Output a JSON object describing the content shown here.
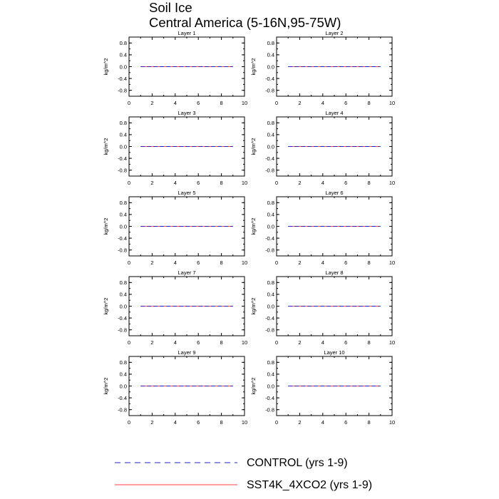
{
  "title": {
    "line1": "Soil Ice",
    "line2": "Central America (5-16N,95-75W)"
  },
  "legend": {
    "items": [
      {
        "label": "CONTROL (yrs 1-9)",
        "color": "#2020c0",
        "style": "dashed"
      },
      {
        "label": "SST4K_4XCO2 (yrs 1-9)",
        "color": "#ff4040",
        "style": "solid"
      }
    ]
  },
  "chart_data": [
    {
      "type": "line",
      "title": "Layer 1",
      "ylabel": "kg/m^2",
      "xlim": [
        0,
        10
      ],
      "ylim": [
        -1,
        1
      ],
      "xticks": [
        "0",
        "2",
        "4",
        "6",
        "8",
        "10"
      ],
      "yticks": [
        "0.8",
        "0.4",
        "0.0",
        "-0.4",
        "-0.8"
      ],
      "series": [
        {
          "name": "CONTROL (yrs 1-9)",
          "x": [
            1,
            2,
            3,
            4,
            5,
            6,
            7,
            8,
            9
          ],
          "y": [
            0,
            0,
            0,
            0,
            0,
            0,
            0,
            0,
            0
          ]
        },
        {
          "name": "SST4K_4XCO2 (yrs 1-9)",
          "x": [
            1,
            2,
            3,
            4,
            5,
            6,
            7,
            8,
            9
          ],
          "y": [
            0,
            0,
            0,
            0,
            0,
            0,
            0,
            0,
            0
          ]
        }
      ]
    },
    {
      "type": "line",
      "title": "Layer 2",
      "ylabel": "kg/m^2",
      "xlim": [
        0,
        10
      ],
      "ylim": [
        -1,
        1
      ],
      "xticks": [
        "0",
        "2",
        "4",
        "6",
        "8",
        "10"
      ],
      "yticks": [
        "0.8",
        "0.4",
        "0.0",
        "-0.4",
        "-0.8"
      ],
      "series": [
        {
          "name": "CONTROL (yrs 1-9)",
          "x": [
            1,
            2,
            3,
            4,
            5,
            6,
            7,
            8,
            9
          ],
          "y": [
            0,
            0,
            0,
            0,
            0,
            0,
            0,
            0,
            0
          ]
        },
        {
          "name": "SST4K_4XCO2 (yrs 1-9)",
          "x": [
            1,
            2,
            3,
            4,
            5,
            6,
            7,
            8,
            9
          ],
          "y": [
            0,
            0,
            0,
            0,
            0,
            0,
            0,
            0,
            0
          ]
        }
      ]
    },
    {
      "type": "line",
      "title": "Layer 3",
      "ylabel": "kg/m^2",
      "xlim": [
        0,
        10
      ],
      "ylim": [
        -1,
        1
      ],
      "xticks": [
        "0",
        "2",
        "4",
        "6",
        "8",
        "10"
      ],
      "yticks": [
        "0.8",
        "0.4",
        "0.0",
        "-0.4",
        "-0.8"
      ],
      "series": [
        {
          "name": "CONTROL (yrs 1-9)",
          "x": [
            1,
            2,
            3,
            4,
            5,
            6,
            7,
            8,
            9
          ],
          "y": [
            0,
            0,
            0,
            0,
            0,
            0,
            0,
            0,
            0
          ]
        },
        {
          "name": "SST4K_4XCO2 (yrs 1-9)",
          "x": [
            1,
            2,
            3,
            4,
            5,
            6,
            7,
            8,
            9
          ],
          "y": [
            0,
            0,
            0,
            0,
            0,
            0,
            0,
            0,
            0
          ]
        }
      ]
    },
    {
      "type": "line",
      "title": "Layer 4",
      "ylabel": "kg/m^2",
      "xlim": [
        0,
        10
      ],
      "ylim": [
        -1,
        1
      ],
      "xticks": [
        "0",
        "2",
        "4",
        "6",
        "8",
        "10"
      ],
      "yticks": [
        "0.8",
        "0.4",
        "0.0",
        "-0.4",
        "-0.8"
      ],
      "series": [
        {
          "name": "CONTROL (yrs 1-9)",
          "x": [
            1,
            2,
            3,
            4,
            5,
            6,
            7,
            8,
            9
          ],
          "y": [
            0,
            0,
            0,
            0,
            0,
            0,
            0,
            0,
            0
          ]
        },
        {
          "name": "SST4K_4XCO2 (yrs 1-9)",
          "x": [
            1,
            2,
            3,
            4,
            5,
            6,
            7,
            8,
            9
          ],
          "y": [
            0,
            0,
            0,
            0,
            0,
            0,
            0,
            0,
            0
          ]
        }
      ]
    },
    {
      "type": "line",
      "title": "Layer 5",
      "ylabel": "kg/m^2",
      "xlim": [
        0,
        10
      ],
      "ylim": [
        -1,
        1
      ],
      "xticks": [
        "0",
        "2",
        "4",
        "6",
        "8",
        "10"
      ],
      "yticks": [
        "0.8",
        "0.4",
        "0.0",
        "-0.4",
        "-0.8"
      ],
      "series": [
        {
          "name": "CONTROL (yrs 1-9)",
          "x": [
            1,
            2,
            3,
            4,
            5,
            6,
            7,
            8,
            9
          ],
          "y": [
            0,
            0,
            0,
            0,
            0,
            0,
            0,
            0,
            0
          ]
        },
        {
          "name": "SST4K_4XCO2 (yrs 1-9)",
          "x": [
            1,
            2,
            3,
            4,
            5,
            6,
            7,
            8,
            9
          ],
          "y": [
            0,
            0,
            0,
            0,
            0,
            0,
            0,
            0,
            0
          ]
        }
      ]
    },
    {
      "type": "line",
      "title": "Layer 6",
      "ylabel": "kg/m^2",
      "xlim": [
        0,
        10
      ],
      "ylim": [
        -1,
        1
      ],
      "xticks": [
        "0",
        "2",
        "4",
        "6",
        "8",
        "10"
      ],
      "yticks": [
        "0.8",
        "0.4",
        "0.0",
        "-0.4",
        "-0.8"
      ],
      "series": [
        {
          "name": "CONTROL (yrs 1-9)",
          "x": [
            1,
            2,
            3,
            4,
            5,
            6,
            7,
            8,
            9
          ],
          "y": [
            0,
            0,
            0,
            0,
            0,
            0,
            0,
            0,
            0
          ]
        },
        {
          "name": "SST4K_4XCO2 (yrs 1-9)",
          "x": [
            1,
            2,
            3,
            4,
            5,
            6,
            7,
            8,
            9
          ],
          "y": [
            0,
            0,
            0,
            0,
            0,
            0,
            0,
            0,
            0
          ]
        }
      ]
    },
    {
      "type": "line",
      "title": "Layer 7",
      "ylabel": "kg/m^2",
      "xlim": [
        0,
        10
      ],
      "ylim": [
        -1,
        1
      ],
      "xticks": [
        "0",
        "2",
        "4",
        "6",
        "8",
        "10"
      ],
      "yticks": [
        "0.8",
        "0.4",
        "0.0",
        "-0.4",
        "-0.8"
      ],
      "series": [
        {
          "name": "CONTROL (yrs 1-9)",
          "x": [
            1,
            2,
            3,
            4,
            5,
            6,
            7,
            8,
            9
          ],
          "y": [
            0,
            0,
            0,
            0,
            0,
            0,
            0,
            0,
            0
          ]
        },
        {
          "name": "SST4K_4XCO2 (yrs 1-9)",
          "x": [
            1,
            2,
            3,
            4,
            5,
            6,
            7,
            8,
            9
          ],
          "y": [
            0,
            0,
            0,
            0,
            0,
            0,
            0,
            0,
            0
          ]
        }
      ]
    },
    {
      "type": "line",
      "title": "Layer 8",
      "ylabel": "kg/m^2",
      "xlim": [
        0,
        10
      ],
      "ylim": [
        -1,
        1
      ],
      "xticks": [
        "0",
        "2",
        "4",
        "6",
        "8",
        "10"
      ],
      "yticks": [
        "0.8",
        "0.4",
        "0.0",
        "-0.4",
        "-0.8"
      ],
      "series": [
        {
          "name": "CONTROL (yrs 1-9)",
          "x": [
            1,
            2,
            3,
            4,
            5,
            6,
            7,
            8,
            9
          ],
          "y": [
            0,
            0,
            0,
            0,
            0,
            0,
            0,
            0,
            0
          ]
        },
        {
          "name": "SST4K_4XCO2 (yrs 1-9)",
          "x": [
            1,
            2,
            3,
            4,
            5,
            6,
            7,
            8,
            9
          ],
          "y": [
            0,
            0,
            0,
            0,
            0,
            0,
            0,
            0,
            0
          ]
        }
      ]
    },
    {
      "type": "line",
      "title": "Layer 9",
      "ylabel": "kg/m^2",
      "xlim": [
        0,
        10
      ],
      "ylim": [
        -1,
        1
      ],
      "xticks": [
        "0",
        "2",
        "4",
        "6",
        "8",
        "10"
      ],
      "yticks": [
        "0.8",
        "0.4",
        "0.0",
        "-0.4",
        "-0.8"
      ],
      "series": [
        {
          "name": "CONTROL (yrs 1-9)",
          "x": [
            1,
            2,
            3,
            4,
            5,
            6,
            7,
            8,
            9
          ],
          "y": [
            0,
            0,
            0,
            0,
            0,
            0,
            0,
            0,
            0
          ]
        },
        {
          "name": "SST4K_4XCO2 (yrs 1-9)",
          "x": [
            1,
            2,
            3,
            4,
            5,
            6,
            7,
            8,
            9
          ],
          "y": [
            0,
            0,
            0,
            0,
            0,
            0,
            0,
            0,
            0
          ]
        }
      ]
    },
    {
      "type": "line",
      "title": "Layer 10",
      "ylabel": "kg/m^2",
      "xlim": [
        0,
        10
      ],
      "ylim": [
        -1,
        1
      ],
      "xticks": [
        "0",
        "2",
        "4",
        "6",
        "8",
        "10"
      ],
      "yticks": [
        "0.8",
        "0.4",
        "0.0",
        "-0.4",
        "-0.8"
      ],
      "series": [
        {
          "name": "CONTROL (yrs 1-9)",
          "x": [
            1,
            2,
            3,
            4,
            5,
            6,
            7,
            8,
            9
          ],
          "y": [
            0,
            0,
            0,
            0,
            0,
            0,
            0,
            0,
            0
          ]
        },
        {
          "name": "SST4K_4XCO2 (yrs 1-9)",
          "x": [
            1,
            2,
            3,
            4,
            5,
            6,
            7,
            8,
            9
          ],
          "y": [
            0,
            0,
            0,
            0,
            0,
            0,
            0,
            0,
            0
          ]
        }
      ]
    }
  ]
}
